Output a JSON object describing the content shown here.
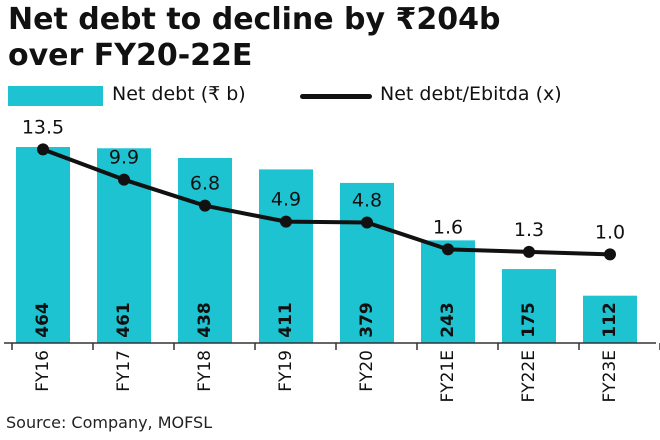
{
  "title_line1": "Net debt to decline by ₹204b",
  "title_line2": "over FY20-22E",
  "legend": {
    "bar_label": "Net debt (₹ b)",
    "line_label": "Net debt/Ebitda (x)"
  },
  "source": "Source: Company, MOFSL",
  "colors": {
    "bar": "#1ec3d2",
    "line": "#111111"
  },
  "chart_data": {
    "type": "bar",
    "categories": [
      "FY16",
      "FY17",
      "FY18",
      "FY19",
      "FY20",
      "FY21E",
      "FY22E",
      "FY23E"
    ],
    "series": [
      {
        "name": "Net debt (₹ b)",
        "type": "bar",
        "values": [
          464,
          461,
          438,
          411,
          379,
          243,
          175,
          112
        ]
      },
      {
        "name": "Net debt/Ebitda (x)",
        "type": "line",
        "values": [
          13.5,
          9.9,
          6.8,
          4.9,
          4.8,
          1.6,
          1.3,
          1.0
        ]
      }
    ],
    "title": "Net debt to decline by ₹204b over FY20-22E",
    "legend_position": "top",
    "grid": false
  }
}
